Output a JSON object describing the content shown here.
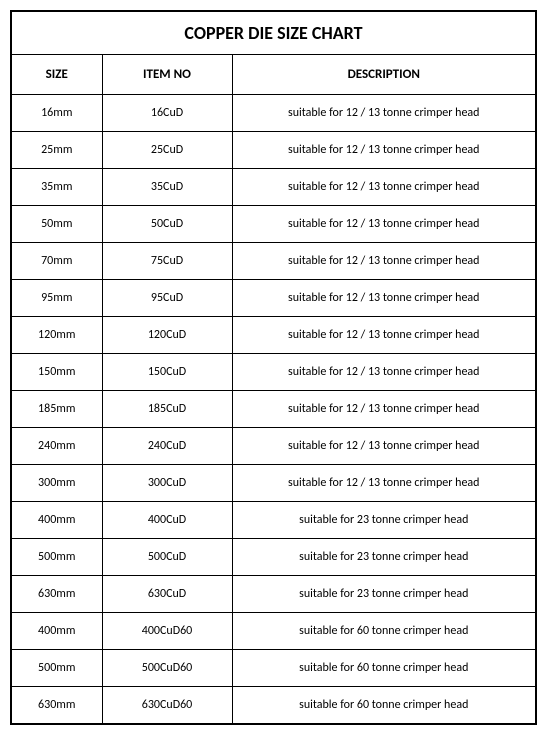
{
  "title": "COPPER DIE SIZE CHART",
  "columns": [
    "SIZE",
    "ITEM NO",
    "DESCRIPTION"
  ],
  "rows": [
    [
      "16mm",
      "16CuD",
      "suitable for 12 / 13 tonne crimper head"
    ],
    [
      "25mm",
      "25CuD",
      "suitable for 12 / 13 tonne crimper head"
    ],
    [
      "35mm",
      "35CuD",
      "suitable for 12 / 13 tonne crimper head"
    ],
    [
      "50mm",
      "50CuD",
      "suitable for 12 / 13 tonne crimper head"
    ],
    [
      "70mm",
      "75CuD",
      "suitable for 12 / 13 tonne crimper head"
    ],
    [
      "95mm",
      "95CuD",
      "suitable for 12 / 13 tonne crimper head"
    ],
    [
      "120mm",
      "120CuD",
      "suitable for 12 / 13 tonne crimper head"
    ],
    [
      "150mm",
      "150CuD",
      "suitable for 12 / 13 tonne crimper head"
    ],
    [
      "185mm",
      "185CuD",
      "suitable for 12 / 13 tonne crimper head"
    ],
    [
      "240mm",
      "240CuD",
      "suitable for 12 / 13 tonne crimper head"
    ],
    [
      "300mm",
      "300CuD",
      "suitable for 12 / 13 tonne crimper head"
    ],
    [
      "400mm",
      "400CuD",
      "suitable for 23  tonne crimper head"
    ],
    [
      "500mm",
      "500CuD",
      "suitable for 23 tonne crimper head"
    ],
    [
      "630mm",
      "630CuD",
      "suitable for 23  tonne crimper head"
    ],
    [
      "400mm",
      "400CuD60",
      "suitable for 60 tonne crimper head"
    ],
    [
      "500mm",
      "500CuD60",
      "suitable for 60 tonne crimper head"
    ],
    [
      "630mm",
      "630CuD60",
      "suitable for 60 tonne crimper head"
    ]
  ]
}
